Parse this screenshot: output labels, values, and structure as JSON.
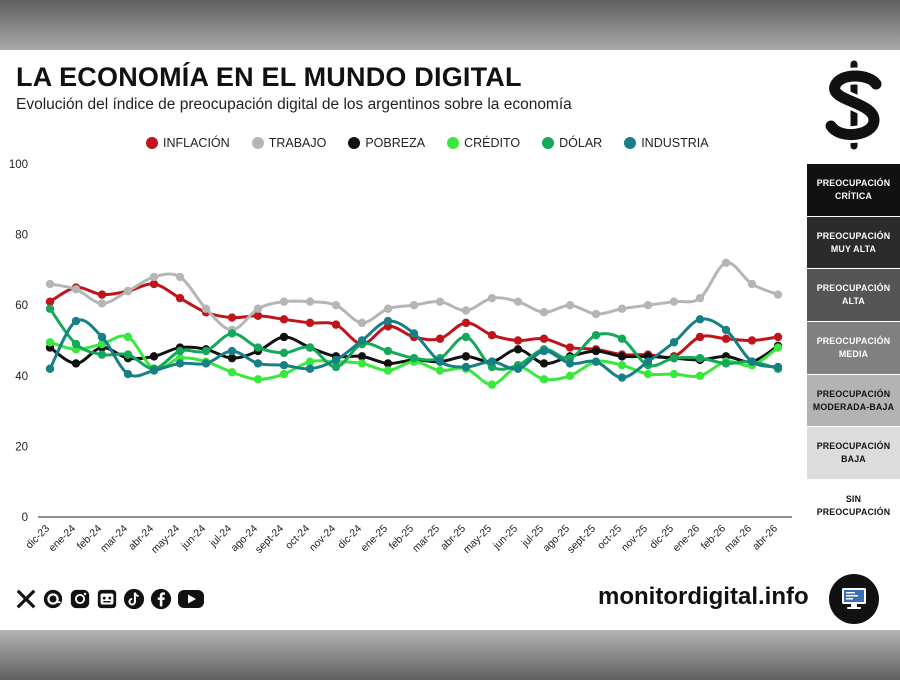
{
  "header": {
    "title": "LA ECONOMÍA EN EL MUNDO DIGITAL",
    "subtitle": "Evolución del índice de preocupación digital de los argentinos sobre la economía"
  },
  "scale_levels": [
    {
      "label": "PREOCUPACIÓN CRÍTICA",
      "bg": "#111111",
      "fg": "#ffffff"
    },
    {
      "label": "PREOCUPACIÓN MUY ALTA",
      "bg": "#2b2b2b",
      "fg": "#ffffff"
    },
    {
      "label": "PREOCUPACIÓN ALTA",
      "bg": "#555555",
      "fg": "#ffffff"
    },
    {
      "label": "PREOCUPACIÓN MEDIA",
      "bg": "#808080",
      "fg": "#ffffff"
    },
    {
      "label": "PREOCUPACIÓN MODERADA-BAJA",
      "bg": "#b3b3b3",
      "fg": "#111111"
    },
    {
      "label": "PREOCUPACIÓN BAJA",
      "bg": "#dcdcdc",
      "fg": "#111111"
    },
    {
      "label": "SIN PREOCUPACIÓN",
      "bg": "#ffffff",
      "fg": "#111111"
    }
  ],
  "footer": {
    "site": "monitordigital.info",
    "social_icons": [
      "x-icon",
      "threads-icon",
      "instagram-icon",
      "news-icon",
      "tiktok-icon",
      "facebook-icon",
      "youtube-icon"
    ]
  },
  "chart_data": {
    "type": "line",
    "ylim": [
      0,
      100
    ],
    "yticks": [
      0,
      20,
      40,
      60,
      80,
      100
    ],
    "legend_position": "top",
    "grid": false,
    "categories": [
      "dic-23",
      "ene-24",
      "feb-24",
      "mar-24",
      "abr-24",
      "may-24",
      "jun-24",
      "jul-24",
      "ago-24",
      "sept-24",
      "oct-24",
      "nov-24",
      "dic-24",
      "ene-25",
      "feb-25",
      "mar-25",
      "abr-25",
      "may-25",
      "jun-25",
      "jul-25",
      "ago-25",
      "sept-25",
      "oct-25",
      "nov-25",
      "dic-25",
      "ene-26",
      "feb-26",
      "mar-26",
      "abr-26"
    ],
    "series": [
      {
        "name": "INFLACIÓN",
        "color": "#c0141c",
        "values": [
          61,
          65,
          63,
          64,
          66,
          62,
          58,
          56.5,
          57,
          56,
          55,
          54.5,
          49,
          54,
          51,
          50.5,
          55,
          51.5,
          50,
          50.5,
          48,
          47.5,
          46,
          46,
          45.5,
          51,
          50.5,
          50,
          51
        ]
      },
      {
        "name": "TRABAJO",
        "color": "#b5b5b5",
        "values": [
          66,
          64.5,
          60.5,
          64,
          68,
          68,
          59,
          53,
          59,
          61,
          61,
          60,
          55,
          59,
          60,
          61,
          58.5,
          62,
          61,
          58,
          60,
          57.5,
          59,
          60,
          61,
          62,
          72,
          66,
          63
        ]
      },
      {
        "name": "POBREZA",
        "color": "#111111",
        "values": [
          48,
          43.5,
          48,
          45,
          45.5,
          48,
          47.5,
          45,
          47,
          51,
          48,
          45.5,
          45.5,
          43.5,
          44.5,
          44,
          45.5,
          44,
          47.5,
          43.5,
          45.5,
          47,
          45.5,
          45.5,
          45,
          44.5,
          45.5,
          44,
          48.5
        ]
      },
      {
        "name": "CRÉDITO",
        "color": "#39e83d",
        "values": [
          49.5,
          47.5,
          49,
          51,
          42,
          45,
          44,
          41,
          39,
          40.5,
          44,
          44,
          43.5,
          41.5,
          44,
          41.5,
          42,
          37.5,
          42.5,
          39,
          40,
          44,
          43,
          40.5,
          40.5,
          40,
          44,
          43,
          48
        ]
      },
      {
        "name": "DÓLAR",
        "color": "#14a85a",
        "values": [
          59,
          49,
          46,
          46,
          42,
          47,
          47,
          52,
          48,
          46.5,
          48,
          42.5,
          49,
          47,
          45,
          45,
          51,
          42.5,
          43,
          47.5,
          45,
          51.5,
          50.5,
          43,
          45,
          45,
          43.5,
          44,
          42
        ]
      },
      {
        "name": "INDUSTRIA",
        "color": "#177f86",
        "values": [
          42,
          55.5,
          51,
          40.5,
          41.5,
          43.5,
          43.5,
          47,
          43.5,
          43,
          42,
          44.5,
          50,
          55.5,
          52,
          44,
          42.5,
          44,
          42,
          47,
          43.5,
          44,
          39.5,
          44,
          49.5,
          56,
          53,
          44,
          42.5
        ]
      }
    ]
  }
}
